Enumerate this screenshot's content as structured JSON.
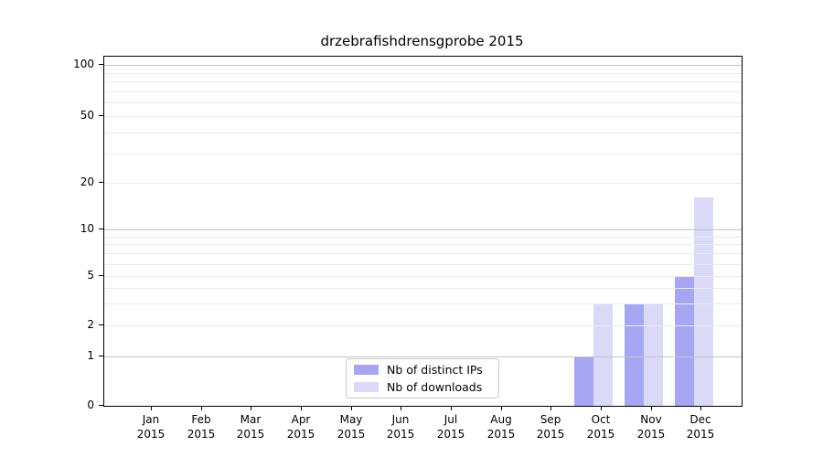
{
  "title": "drzebrafishdrensgprobe 2015",
  "legend": {
    "items": [
      {
        "label": "Nb of distinct IPs",
        "color": "#a6a6f2"
      },
      {
        "label": "Nb of downloads",
        "color": "#dadaf8"
      }
    ]
  },
  "colors": {
    "major_grid": "#c4c4c4",
    "minor_grid": "#eaeaea",
    "axis": "#000000"
  },
  "chart_data": {
    "type": "bar",
    "title": "drzebrafishdrensgprobe 2015",
    "categories": [
      {
        "month": "Jan",
        "year": "2015"
      },
      {
        "month": "Feb",
        "year": "2015"
      },
      {
        "month": "Mar",
        "year": "2015"
      },
      {
        "month": "Apr",
        "year": "2015"
      },
      {
        "month": "May",
        "year": "2015"
      },
      {
        "month": "Jun",
        "year": "2015"
      },
      {
        "month": "Jul",
        "year": "2015"
      },
      {
        "month": "Aug",
        "year": "2015"
      },
      {
        "month": "Sep",
        "year": "2015"
      },
      {
        "month": "Oct",
        "year": "2015"
      },
      {
        "month": "Nov",
        "year": "2015"
      },
      {
        "month": "Dec",
        "year": "2015"
      }
    ],
    "series": [
      {
        "name": "Nb of distinct IPs",
        "color": "#a6a6f2",
        "values": [
          0,
          0,
          0,
          0,
          0,
          0,
          0,
          0,
          0,
          1,
          3,
          5
        ]
      },
      {
        "name": "Nb of downloads",
        "color": "#dadaf8",
        "values": [
          0,
          0,
          0,
          0,
          0,
          0,
          0,
          0,
          0,
          3,
          3,
          16
        ]
      }
    ],
    "y_ticks": [
      0,
      1,
      2,
      5,
      10,
      20,
      50,
      100
    ],
    "y_minor_gridlines": [
      2,
      3,
      4,
      5,
      6,
      7,
      8,
      9,
      20,
      30,
      40,
      50,
      60,
      70,
      80,
      90
    ],
    "y_major_gridlines": [
      1,
      10,
      100
    ],
    "y_scale": "log-like (0 baseline, compressed decades)",
    "ylim": [
      0,
      112
    ],
    "grid": "both",
    "legend_position": "inside bottom-center"
  }
}
